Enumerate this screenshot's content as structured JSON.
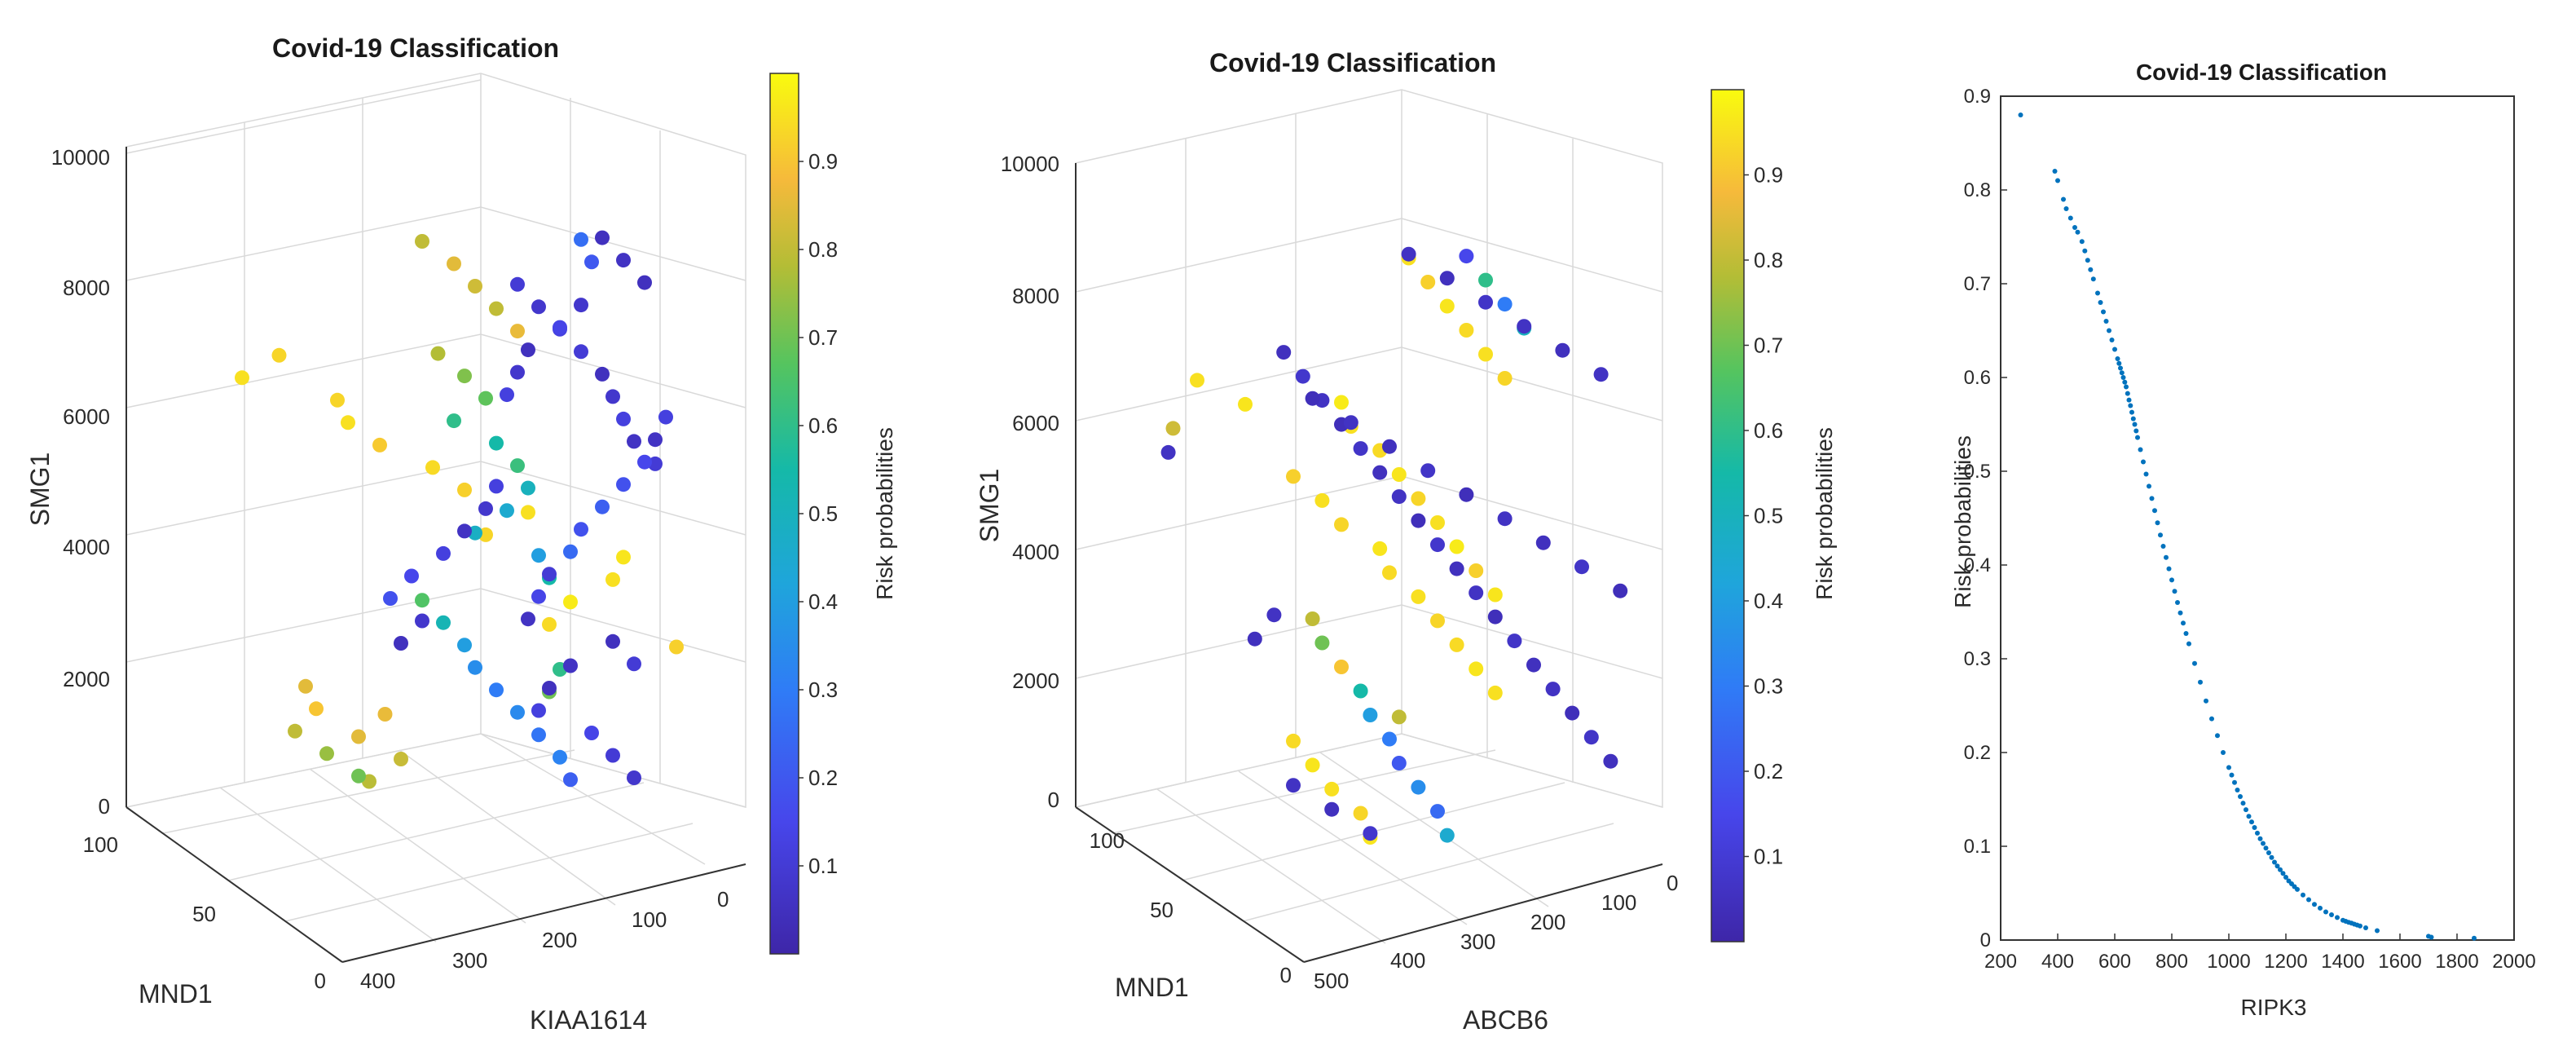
{
  "chart_data": [
    {
      "type": "scatter3d",
      "title": "Covid-19 Classification",
      "xlabel": "KIAA1614",
      "ylabel": "MND1",
      "zlabel": "SMG1",
      "xticks": [
        "400",
        "300",
        "200",
        "100",
        "0"
      ],
      "yticks": [
        "0",
        "50",
        "100"
      ],
      "zticks": [
        "0",
        "2000",
        "4000",
        "6000",
        "8000",
        "10000"
      ],
      "xlim": [
        0,
        400
      ],
      "ylim": [
        0,
        100
      ],
      "zlim": [
        0,
        10000
      ],
      "colorbar": {
        "label": "Risk probabilities",
        "ticks": [
          "0.1",
          "0.2",
          "0.3",
          "0.4",
          "0.5",
          "0.6",
          "0.7",
          "0.8",
          "0.9"
        ],
        "range": [
          0,
          1
        ]
      },
      "points": [
        [
          0.25,
          0.93
        ],
        [
          0.18,
          0.95
        ],
        [
          0.36,
          0.93
        ],
        [
          0.38,
          0.95
        ],
        [
          0.44,
          0.91
        ],
        [
          0.54,
          0.94
        ],
        [
          0.6,
          0.92
        ],
        [
          0.72,
          0.95
        ],
        [
          0.64,
          0.93
        ],
        [
          0.9,
          0.96
        ],
        [
          0.88,
          0.95
        ],
        [
          0.8,
          0.97
        ],
        [
          0.76,
          0.94
        ],
        [
          1.0,
          0.92
        ],
        [
          0.78,
          0.6
        ],
        [
          0.76,
          0.7
        ],
        [
          0.45,
          0.86
        ],
        [
          0.4,
          0.85
        ],
        [
          0.48,
          0.81
        ],
        [
          0.42,
          0.79
        ],
        [
          0.52,
          0.8
        ],
        [
          0.58,
          0.85
        ],
        [
          0.62,
          0.82
        ],
        [
          0.66,
          0.8
        ],
        [
          0.7,
          0.86
        ],
        [
          0.55,
          0.78
        ],
        [
          0.6,
          0.72
        ],
        [
          0.64,
          0.68
        ],
        [
          0.58,
          0.6
        ],
        [
          0.66,
          0.55
        ],
        [
          0.7,
          0.62
        ],
        [
          0.72,
          0.5
        ],
        [
          0.68,
          0.45
        ],
        [
          0.62,
          0.48
        ],
        [
          0.74,
          0.4
        ],
        [
          0.76,
          0.55
        ],
        [
          0.52,
          0.66
        ],
        [
          0.56,
          0.52
        ],
        [
          0.6,
          0.4
        ],
        [
          0.62,
          0.35
        ],
        [
          0.66,
          0.3
        ],
        [
          0.7,
          0.34
        ],
        [
          0.74,
          0.28
        ],
        [
          0.78,
          0.32
        ],
        [
          0.8,
          0.22
        ],
        [
          0.82,
          0.26
        ],
        [
          0.84,
          0.2
        ],
        [
          0.7,
          0.1
        ],
        [
          0.74,
          0.08
        ],
        [
          0.78,
          0.12
        ],
        [
          0.82,
          0.1
        ],
        [
          0.86,
          0.05
        ],
        [
          0.88,
          0.08
        ],
        [
          0.9,
          0.12
        ],
        [
          0.92,
          0.06
        ],
        [
          0.96,
          0.1
        ],
        [
          0.66,
          0.12
        ],
        [
          0.64,
          0.08
        ],
        [
          0.6,
          0.06
        ],
        [
          0.56,
          0.12
        ],
        [
          0.5,
          0.15
        ],
        [
          0.46,
          0.18
        ],
        [
          0.52,
          0.08
        ],
        [
          0.48,
          0.05
        ],
        [
          0.8,
          0.06
        ],
        [
          0.76,
          0.05
        ],
        [
          0.74,
          0.12
        ],
        [
          0.84,
          0.14
        ],
        [
          0.88,
          0.1
        ],
        [
          0.92,
          0.08
        ],
        [
          0.86,
          0.05
        ],
        [
          0.9,
          0.06
        ],
        [
          0.94,
          0.05
        ],
        [
          0.82,
          0.08
        ],
        [
          0.78,
          0.14
        ],
        [
          0.72,
          0.05
        ],
        [
          0.7,
          0.08
        ],
        [
          0.68,
          0.12
        ],
        [
          0.98,
          0.12
        ],
        [
          0.96,
          0.06
        ],
        [
          0.94,
          0.15
        ],
        [
          0.9,
          0.18
        ],
        [
          0.86,
          0.22
        ],
        [
          0.82,
          0.18
        ],
        [
          0.8,
          0.25
        ],
        [
          0.76,
          0.1
        ],
        [
          0.74,
          0.14
        ],
        [
          0.72,
          0.06
        ],
        [
          0.88,
          0.05
        ],
        [
          0.92,
          0.1
        ],
        [
          0.3,
          0.85
        ],
        [
          0.32,
          0.9
        ],
        [
          0.28,
          0.8
        ],
        [
          0.34,
          0.75
        ],
        [
          0.4,
          0.7
        ]
      ]
    },
    {
      "type": "scatter3d",
      "title": "Covid-19 Classification",
      "xlabel": "ABCB6",
      "ylabel": "MND1",
      "zlabel": "SMG1",
      "xticks": [
        "500",
        "400",
        "300",
        "200",
        "100",
        "0"
      ],
      "yticks": [
        "0",
        "50",
        "100"
      ],
      "zticks": [
        "0",
        "2000",
        "4000",
        "6000",
        "8000",
        "10000"
      ],
      "xlim": [
        0,
        500
      ],
      "ylim": [
        0,
        100
      ],
      "zlim": [
        0,
        10000
      ],
      "colorbar": {
        "label": "Risk probabilities",
        "ticks": [
          "0.1",
          "0.2",
          "0.3",
          "0.4",
          "0.5",
          "0.6",
          "0.7",
          "0.8",
          "0.9"
        ],
        "range": [
          0,
          1
        ]
      },
      "points": [
        [
          0.1,
          0.95
        ],
        [
          0.2,
          0.96
        ],
        [
          0.05,
          0.82
        ],
        [
          0.04,
          0.06
        ],
        [
          0.3,
          0.92
        ],
        [
          0.36,
          0.95
        ],
        [
          0.4,
          0.93
        ],
        [
          0.48,
          0.96
        ],
        [
          0.5,
          0.94
        ],
        [
          0.56,
          0.95
        ],
        [
          0.6,
          0.93
        ],
        [
          0.64,
          0.94
        ],
        [
          0.68,
          0.96
        ],
        [
          0.72,
          0.95
        ],
        [
          0.52,
          0.8
        ],
        [
          0.3,
          0.94
        ],
        [
          0.34,
          0.96
        ],
        [
          0.38,
          0.95
        ],
        [
          0.44,
          0.93
        ],
        [
          0.46,
          0.96
        ],
        [
          0.54,
          0.95
        ],
        [
          0.58,
          0.92
        ],
        [
          0.62,
          0.96
        ],
        [
          0.66,
          0.94
        ],
        [
          0.7,
          0.95
        ],
        [
          0.74,
          0.93
        ],
        [
          0.4,
          0.97
        ],
        [
          0.42,
          0.95
        ],
        [
          0.48,
          0.94
        ],
        [
          0.52,
          0.96
        ],
        [
          0.56,
          0.93
        ],
        [
          0.6,
          0.95
        ],
        [
          0.64,
          0.97
        ],
        [
          0.68,
          0.92
        ],
        [
          0.72,
          0.96
        ],
        [
          0.34,
          0.8
        ],
        [
          0.36,
          0.7
        ],
        [
          0.4,
          0.9
        ],
        [
          0.44,
          0.55
        ],
        [
          0.46,
          0.4
        ],
        [
          0.5,
          0.3
        ],
        [
          0.52,
          0.2
        ],
        [
          0.56,
          0.35
        ],
        [
          0.6,
          0.25
        ],
        [
          0.62,
          0.45
        ],
        [
          0.66,
          0.15
        ],
        [
          0.7,
          0.6
        ],
        [
          0.74,
          0.3
        ],
        [
          0.78,
          0.5
        ],
        [
          0.28,
          0.05
        ],
        [
          0.32,
          0.08
        ],
        [
          0.36,
          0.06
        ],
        [
          0.4,
          0.04
        ],
        [
          0.44,
          0.07
        ],
        [
          0.48,
          0.05
        ],
        [
          0.52,
          0.06
        ],
        [
          0.56,
          0.04
        ],
        [
          0.6,
          0.08
        ],
        [
          0.64,
          0.05
        ],
        [
          0.68,
          0.06
        ],
        [
          0.72,
          0.04
        ],
        [
          0.76,
          0.07
        ],
        [
          0.8,
          0.05
        ],
        [
          0.84,
          0.06
        ],
        [
          0.88,
          0.04
        ],
        [
          0.92,
          0.07
        ],
        [
          0.96,
          0.05
        ],
        [
          0.3,
          0.06
        ],
        [
          0.38,
          0.05
        ],
        [
          0.46,
          0.08
        ],
        [
          0.54,
          0.06
        ],
        [
          0.62,
          0.05
        ],
        [
          0.7,
          0.07
        ],
        [
          0.78,
          0.06
        ],
        [
          0.86,
          0.05
        ],
        [
          0.94,
          0.06
        ],
        [
          0.34,
          0.04
        ],
        [
          0.42,
          0.06
        ],
        [
          0.5,
          0.05
        ],
        [
          0.58,
          0.07
        ],
        [
          0.66,
          0.04
        ],
        [
          0.74,
          0.06
        ],
        [
          0.82,
          0.05
        ],
        [
          0.9,
          0.07
        ],
        [
          0.98,
          0.04
        ],
        [
          0.26,
          0.06
        ],
        [
          0.22,
          0.05
        ]
      ]
    },
    {
      "type": "scatter",
      "title": "Covid-19 Classification",
      "xlabel": "RIPK3",
      "ylabel": "Risk probabilities",
      "xlim": [
        200,
        2000
      ],
      "ylim": [
        0,
        0.9
      ],
      "xticks": [
        "200",
        "400",
        "600",
        "800",
        "1000",
        "1200",
        "1400",
        "1600",
        "1800",
        "2000"
      ],
      "yticks": [
        "0",
        "0.1",
        "0.2",
        "0.3",
        "0.4",
        "0.5",
        "0.6",
        "0.7",
        "0.8",
        "0.9"
      ],
      "series": [
        {
          "name": "Risk probabilities",
          "x": [
            270,
            390,
            400,
            420,
            430,
            445,
            460,
            470,
            485,
            495,
            505,
            515,
            525,
            540,
            550,
            560,
            570,
            580,
            590,
            600,
            610,
            615,
            620,
            625,
            630,
            635,
            640,
            645,
            650,
            655,
            660,
            665,
            670,
            675,
            680,
            690,
            700,
            710,
            720,
            730,
            740,
            750,
            760,
            770,
            780,
            790,
            800,
            810,
            820,
            830,
            840,
            850,
            860,
            880,
            900,
            920,
            940,
            960,
            980,
            1000,
            1010,
            1020,
            1030,
            1040,
            1050,
            1060,
            1070,
            1080,
            1090,
            1100,
            1110,
            1120,
            1130,
            1140,
            1150,
            1160,
            1170,
            1180,
            1190,
            1200,
            1210,
            1220,
            1230,
            1240,
            1260,
            1280,
            1300,
            1320,
            1340,
            1360,
            1380,
            1400,
            1410,
            1420,
            1430,
            1440,
            1450,
            1460,
            1480,
            1520,
            1700,
            1710,
            1860
          ],
          "y": [
            0.88,
            0.82,
            0.81,
            0.79,
            0.78,
            0.77,
            0.76,
            0.755,
            0.745,
            0.735,
            0.725,
            0.715,
            0.705,
            0.69,
            0.68,
            0.67,
            0.66,
            0.65,
            0.64,
            0.63,
            0.62,
            0.615,
            0.61,
            0.605,
            0.6,
            0.595,
            0.59,
            0.583,
            0.576,
            0.57,
            0.563,
            0.556,
            0.55,
            0.543,
            0.536,
            0.523,
            0.51,
            0.497,
            0.484,
            0.471,
            0.458,
            0.445,
            0.432,
            0.42,
            0.408,
            0.396,
            0.384,
            0.372,
            0.36,
            0.349,
            0.338,
            0.327,
            0.316,
            0.295,
            0.275,
            0.255,
            0.236,
            0.218,
            0.2,
            0.184,
            0.176,
            0.168,
            0.16,
            0.153,
            0.146,
            0.139,
            0.132,
            0.126,
            0.12,
            0.114,
            0.108,
            0.103,
            0.098,
            0.093,
            0.088,
            0.083,
            0.079,
            0.075,
            0.071,
            0.067,
            0.063,
            0.06,
            0.057,
            0.054,
            0.048,
            0.043,
            0.038,
            0.034,
            0.03,
            0.027,
            0.024,
            0.021,
            0.02,
            0.019,
            0.018,
            0.017,
            0.016,
            0.015,
            0.013,
            0.01,
            0.004,
            0.003,
            0.002
          ]
        }
      ]
    }
  ]
}
